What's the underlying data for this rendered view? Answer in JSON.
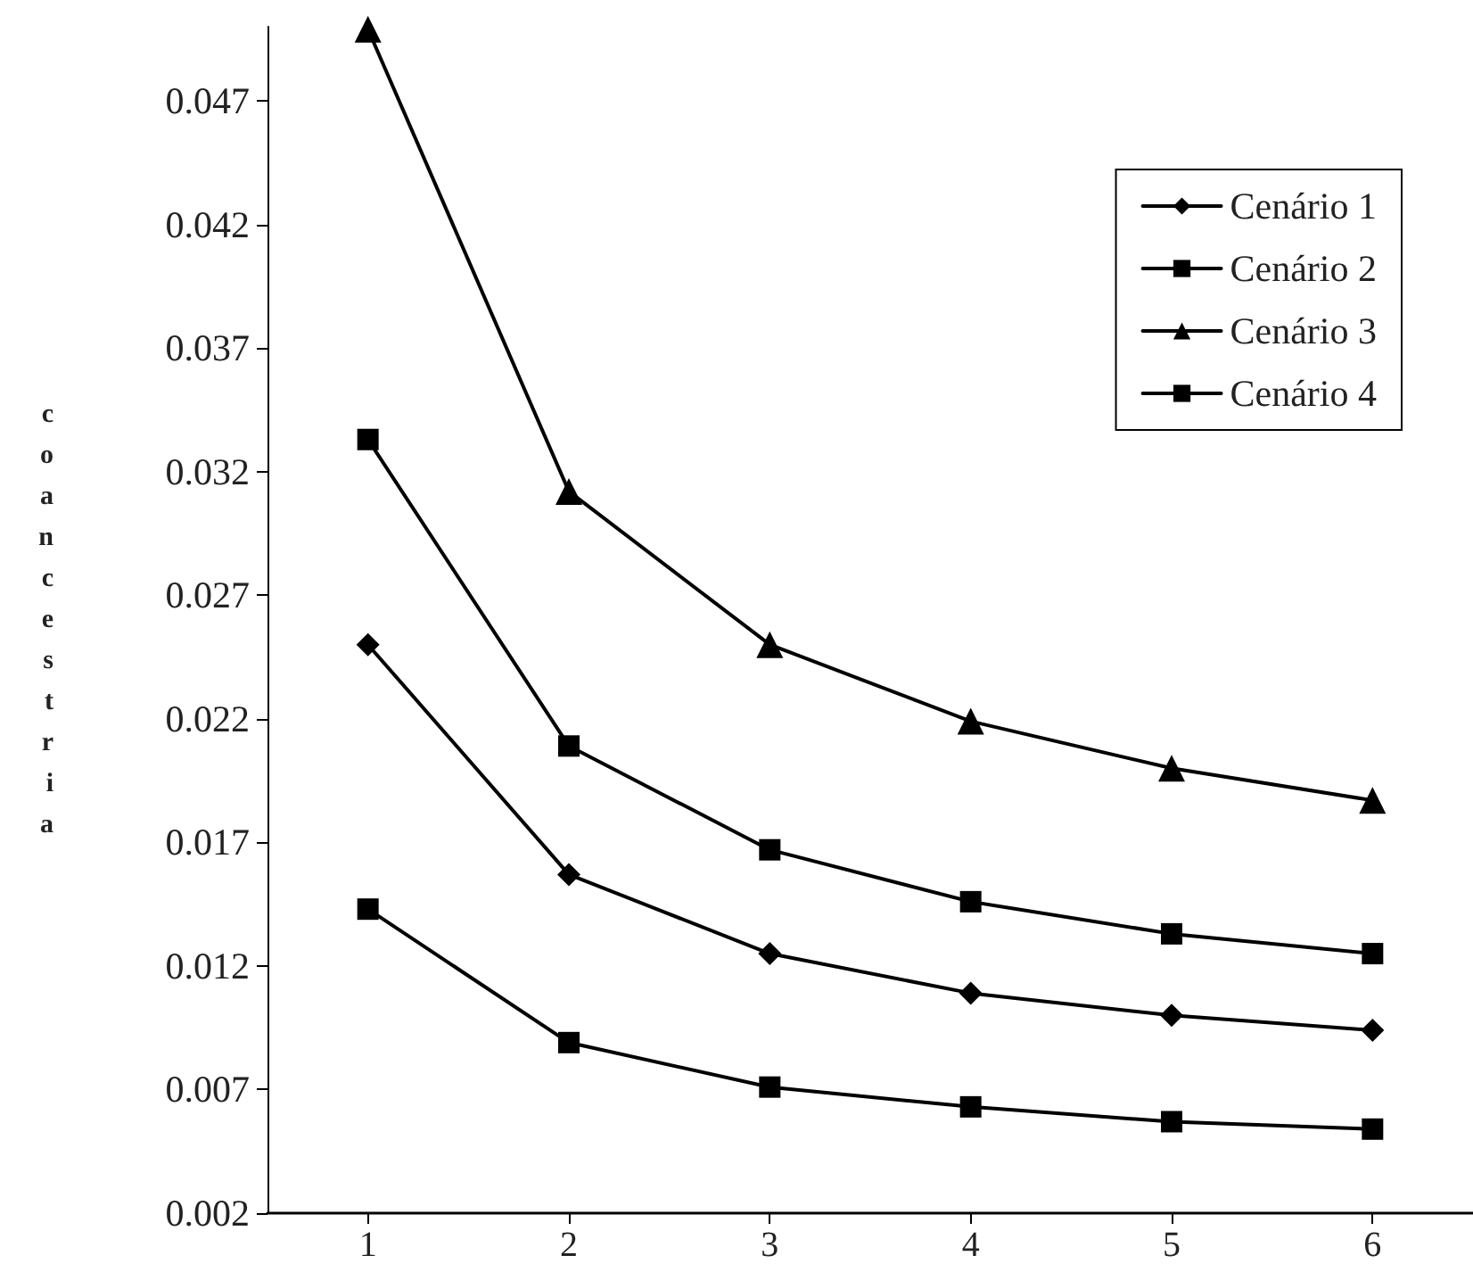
{
  "chart_data": {
    "type": "line",
    "ylabel": "coancestria",
    "categories": [
      "1",
      "2",
      "3",
      "4",
      "5",
      "6"
    ],
    "series": [
      {
        "name": "Cenário 1",
        "color": "#000000",
        "marker": "diamond",
        "values": [
          0.025,
          0.0157,
          0.0125,
          0.0109,
          0.01,
          0.0094
        ]
      },
      {
        "name": "Cenário 2",
        "color": "#000000",
        "marker": "square",
        "values": [
          0.0333,
          0.0209,
          0.0167,
          0.0146,
          0.0133,
          0.0125
        ]
      },
      {
        "name": "Cenário 3",
        "color": "#000000",
        "marker": "triangle",
        "values": [
          0.0499,
          0.0312,
          0.025,
          0.0219,
          0.02,
          0.0187
        ]
      },
      {
        "name": "Cenário 4",
        "color": "#000000",
        "marker": "square",
        "values": [
          0.0143,
          0.0089,
          0.0071,
          0.0063,
          0.0057,
          0.0054
        ]
      }
    ],
    "ylim": [
      0.002,
      0.05
    ],
    "yticks": [
      0.002,
      0.007,
      0.012,
      0.017,
      0.022,
      0.027,
      0.032,
      0.037,
      0.042,
      0.047
    ],
    "grid": false,
    "legend": "top right",
    "line_style": "solid"
  }
}
